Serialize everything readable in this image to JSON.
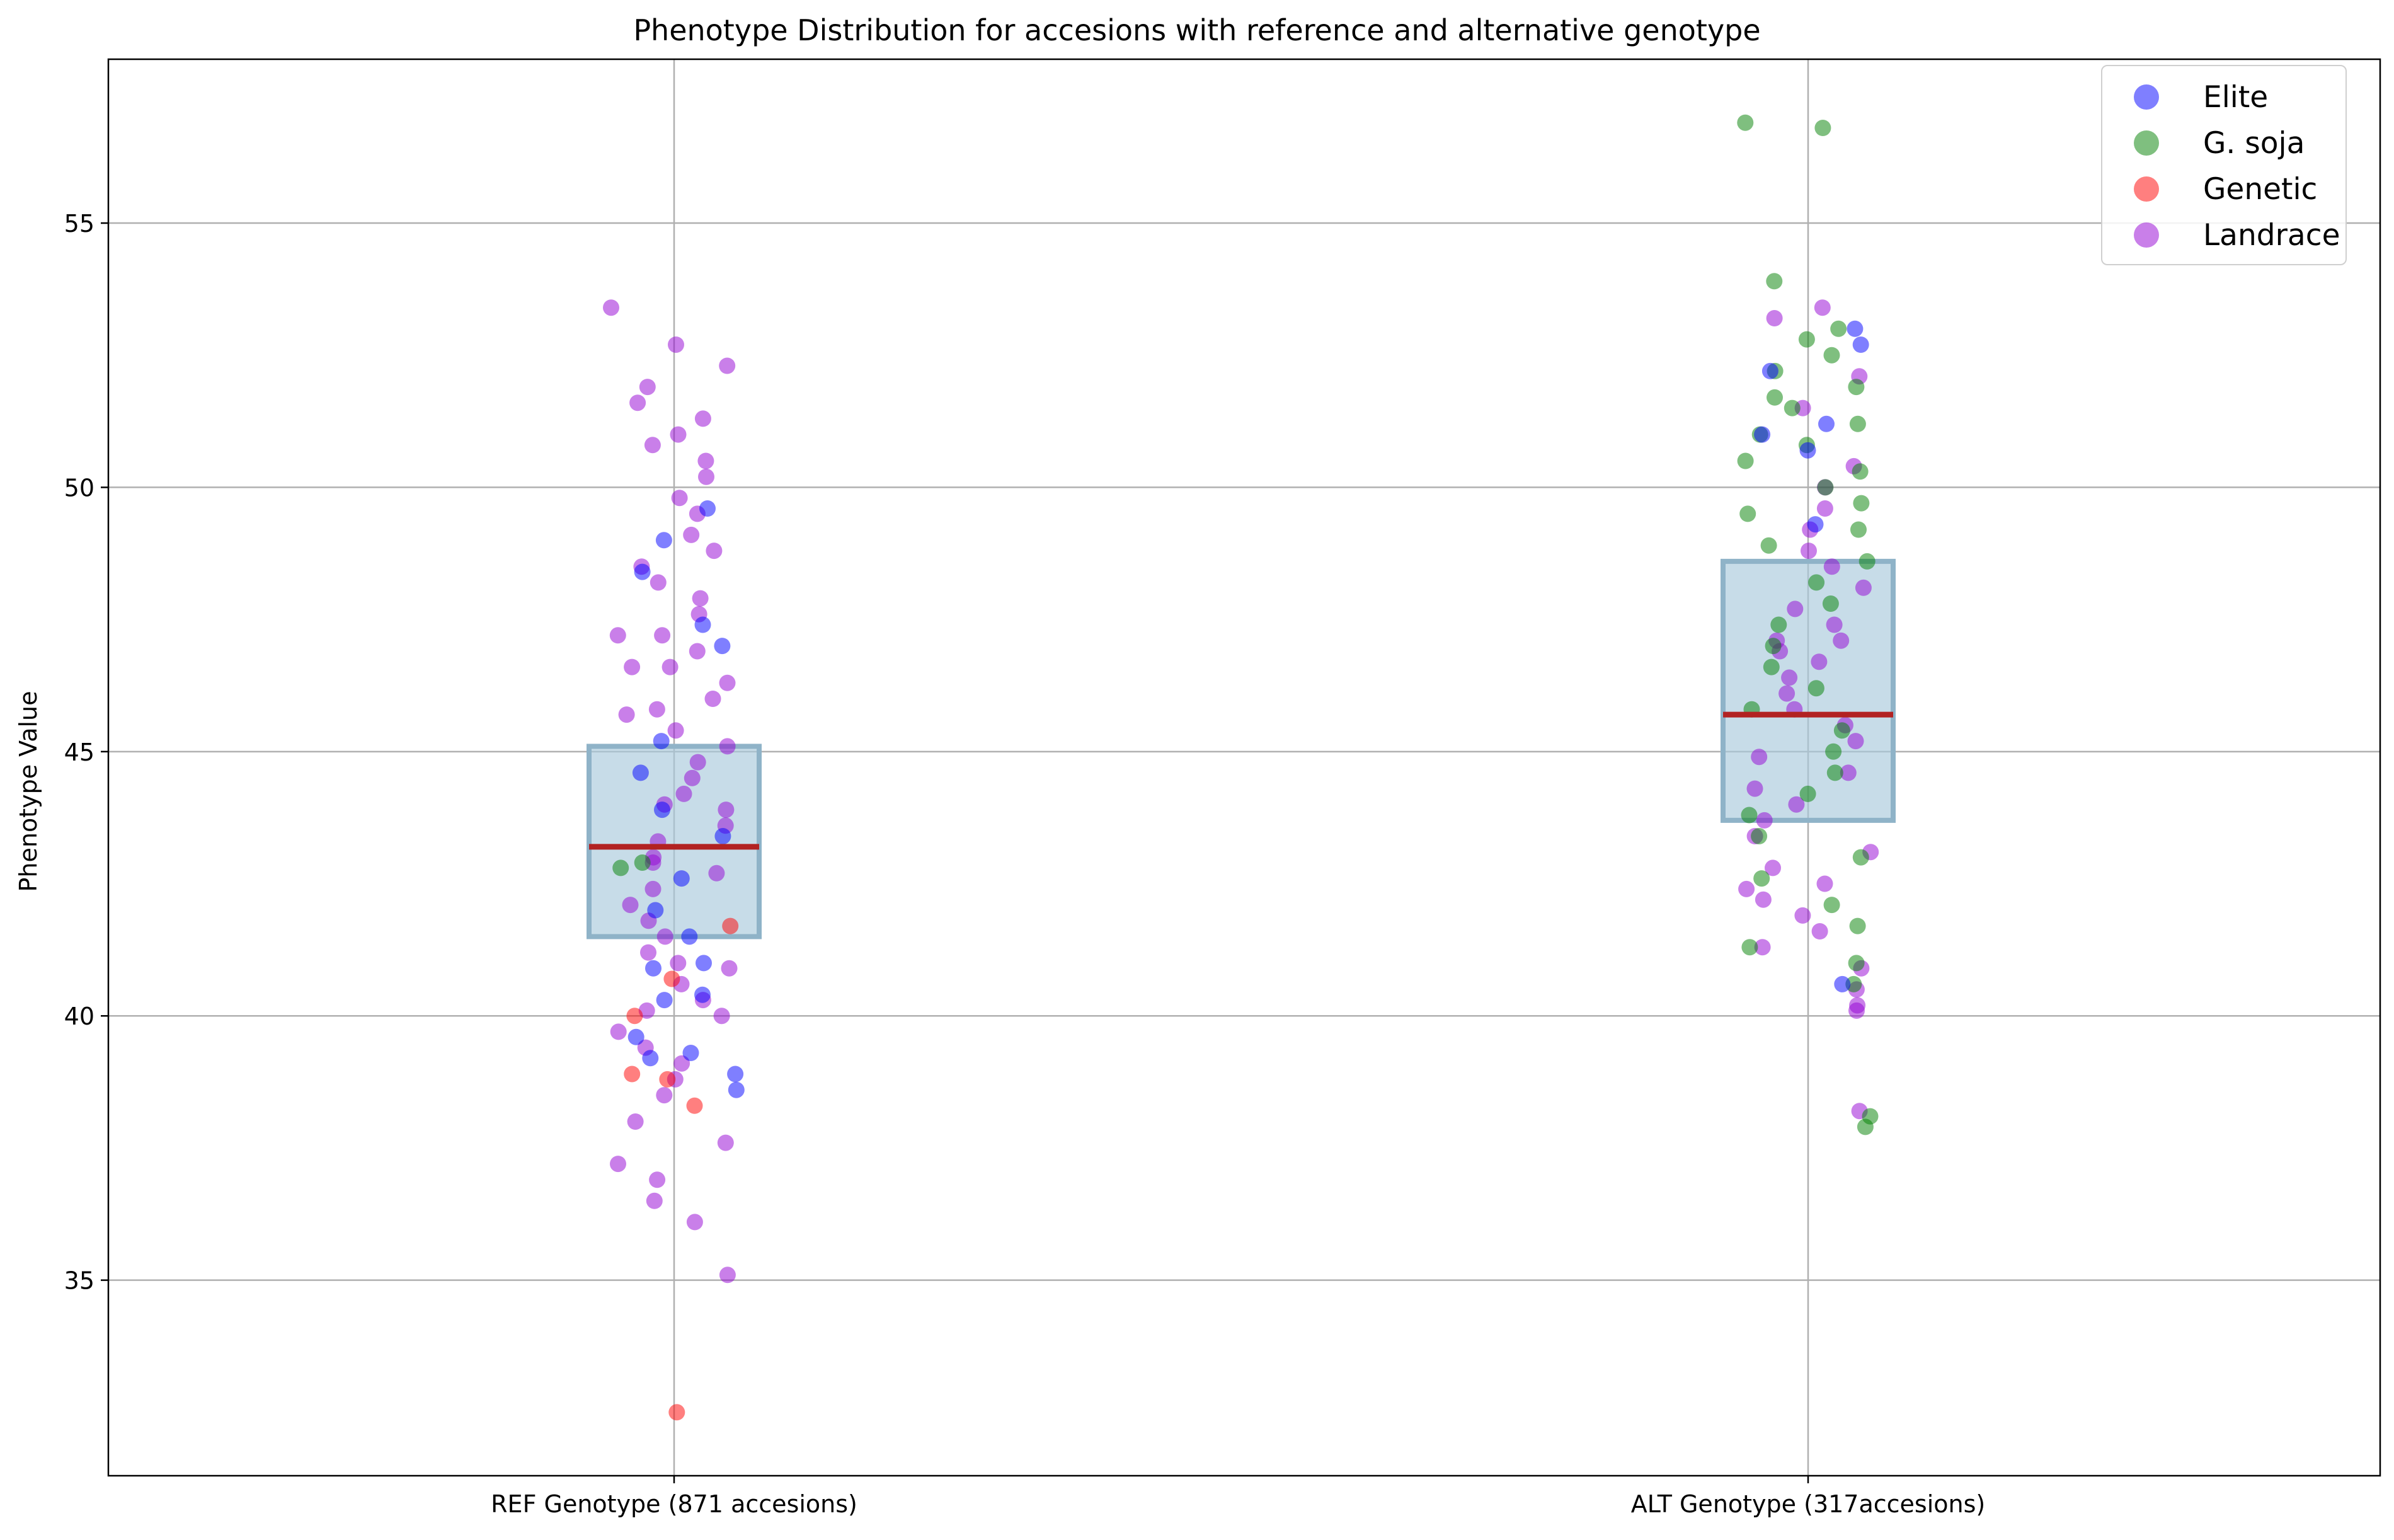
{
  "chart_data": {
    "type": "scatter",
    "title": "Phenotype Distribution for accesions with reference and alternative genotype",
    "ylabel": "Phenotype Value",
    "xlabel": "",
    "ylim": [
      31.3,
      58.1
    ],
    "yticks": [
      35,
      40,
      45,
      50,
      55
    ],
    "grid": true,
    "legend_position": "top-right",
    "categories": [
      "REF Genotype (871 accesions)",
      "ALT Genotype (317accesions)"
    ],
    "legend": [
      {
        "name": "Elite",
        "color": "#0000ff"
      },
      {
        "name": "G. soja",
        "color": "#008000"
      },
      {
        "name": "Genetic",
        "color": "#ff0000"
      },
      {
        "name": "Landrace",
        "color": "#9400d3"
      }
    ],
    "boxes": [
      {
        "category": "REF Genotype (871 accesions)",
        "q1": 41.5,
        "median": 43.2,
        "q3": 45.1
      },
      {
        "category": "ALT Genotype (317accesions)",
        "q1": 43.7,
        "median": 45.7,
        "q3": 48.6
      }
    ],
    "box_fill": "#a9cadb",
    "box_edge": "#8fb3c8",
    "median_color": "#b22222",
    "series": [
      {
        "name": "Landrace",
        "color": "#9400d3",
        "points": [
          [
            0,
            53.4
          ],
          [
            0,
            52.3
          ],
          [
            0,
            51.9
          ],
          [
            0,
            51.6
          ],
          [
            0,
            51.3
          ],
          [
            0,
            51.0
          ],
          [
            0,
            50.8
          ],
          [
            0,
            50.5
          ],
          [
            0,
            50.2
          ],
          [
            0,
            49.8
          ],
          [
            0,
            49.5
          ],
          [
            0,
            49.1
          ],
          [
            0,
            48.8
          ],
          [
            0,
            48.5
          ],
          [
            0,
            48.2
          ],
          [
            0,
            47.9
          ],
          [
            0,
            47.6
          ],
          [
            0,
            47.2
          ],
          [
            0,
            46.9
          ],
          [
            0,
            46.6
          ],
          [
            0,
            46.3
          ],
          [
            0,
            46.0
          ],
          [
            0,
            45.7
          ],
          [
            0,
            45.4
          ],
          [
            0,
            45.1
          ],
          [
            0,
            44.8
          ],
          [
            0,
            44.5
          ],
          [
            0,
            44.2
          ],
          [
            0,
            43.9
          ],
          [
            0,
            43.6
          ],
          [
            0,
            43.3
          ],
          [
            0,
            43.0
          ],
          [
            0,
            42.7
          ],
          [
            0,
            42.4
          ],
          [
            0,
            42.1
          ],
          [
            0,
            41.8
          ],
          [
            0,
            41.5
          ],
          [
            0,
            41.2
          ],
          [
            0,
            40.9
          ],
          [
            0,
            40.6
          ],
          [
            0,
            40.3
          ],
          [
            0,
            40.0
          ],
          [
            0,
            39.7
          ],
          [
            0,
            39.4
          ],
          [
            0,
            39.1
          ],
          [
            0,
            38.8
          ],
          [
            0,
            38.5
          ],
          [
            0,
            38.0
          ],
          [
            0,
            37.6
          ],
          [
            0,
            37.2
          ],
          [
            0,
            36.9
          ],
          [
            0,
            36.5
          ],
          [
            0,
            36.1
          ],
          [
            0,
            35.1
          ],
          [
            0,
            52.7
          ],
          [
            0,
            46.6
          ],
          [
            0,
            47.2
          ],
          [
            0,
            40.1
          ],
          [
            0,
            45.8
          ],
          [
            0,
            44.0
          ],
          [
            0,
            42.9
          ],
          [
            0,
            41.0
          ],
          [
            1,
            53.4
          ],
          [
            1,
            53.2
          ],
          [
            1,
            52.1
          ],
          [
            1,
            51.5
          ],
          [
            1,
            50.4
          ],
          [
            1,
            50.0
          ],
          [
            1,
            49.6
          ],
          [
            1,
            49.2
          ],
          [
            1,
            48.8
          ],
          [
            1,
            48.5
          ],
          [
            1,
            48.1
          ],
          [
            1,
            47.7
          ],
          [
            1,
            47.4
          ],
          [
            1,
            47.1
          ],
          [
            1,
            46.7
          ],
          [
            1,
            46.4
          ],
          [
            1,
            46.1
          ],
          [
            1,
            45.8
          ],
          [
            1,
            45.5
          ],
          [
            1,
            45.2
          ],
          [
            1,
            44.9
          ],
          [
            1,
            44.6
          ],
          [
            1,
            44.3
          ],
          [
            1,
            44.0
          ],
          [
            1,
            43.7
          ],
          [
            1,
            43.4
          ],
          [
            1,
            43.1
          ],
          [
            1,
            42.8
          ],
          [
            1,
            42.5
          ],
          [
            1,
            42.2
          ],
          [
            1,
            41.9
          ],
          [
            1,
            41.6
          ],
          [
            1,
            41.3
          ],
          [
            1,
            40.9
          ],
          [
            1,
            40.5
          ],
          [
            1,
            40.2
          ],
          [
            1,
            40.1
          ],
          [
            1,
            38.2
          ],
          [
            1,
            47.1
          ],
          [
            1,
            46.9
          ],
          [
            1,
            42.4
          ]
        ]
      },
      {
        "name": "G. soja",
        "color": "#008000",
        "points": [
          [
            0,
            42.9
          ],
          [
            0,
            42.8
          ],
          [
            1,
            56.9
          ],
          [
            1,
            56.8
          ],
          [
            1,
            53.9
          ],
          [
            1,
            53.0
          ],
          [
            1,
            52.8
          ],
          [
            1,
            52.5
          ],
          [
            1,
            52.2
          ],
          [
            1,
            51.9
          ],
          [
            1,
            51.7
          ],
          [
            1,
            51.5
          ],
          [
            1,
            51.2
          ],
          [
            1,
            51.0
          ],
          [
            1,
            50.8
          ],
          [
            1,
            50.5
          ],
          [
            1,
            50.3
          ],
          [
            1,
            50.0
          ],
          [
            1,
            49.7
          ],
          [
            1,
            49.5
          ],
          [
            1,
            49.2
          ],
          [
            1,
            48.9
          ],
          [
            1,
            48.6
          ],
          [
            1,
            48.2
          ],
          [
            1,
            47.8
          ],
          [
            1,
            47.4
          ],
          [
            1,
            47.0
          ],
          [
            1,
            46.6
          ],
          [
            1,
            46.2
          ],
          [
            1,
            45.8
          ],
          [
            1,
            45.4
          ],
          [
            1,
            45.0
          ],
          [
            1,
            44.6
          ],
          [
            1,
            44.2
          ],
          [
            1,
            43.8
          ],
          [
            1,
            43.4
          ],
          [
            1,
            43.0
          ],
          [
            1,
            42.6
          ],
          [
            1,
            42.1
          ],
          [
            1,
            41.7
          ],
          [
            1,
            41.3
          ],
          [
            1,
            41.0
          ],
          [
            1,
            40.6
          ],
          [
            1,
            38.1
          ],
          [
            1,
            37.9
          ]
        ]
      },
      {
        "name": "Elite",
        "color": "#0000ff",
        "points": [
          [
            0,
            49.6
          ],
          [
            0,
            49.0
          ],
          [
            0,
            48.4
          ],
          [
            0,
            47.4
          ],
          [
            0,
            47.0
          ],
          [
            0,
            45.2
          ],
          [
            0,
            44.6
          ],
          [
            0,
            43.9
          ],
          [
            0,
            43.4
          ],
          [
            0,
            42.6
          ],
          [
            0,
            42.0
          ],
          [
            0,
            41.5
          ],
          [
            0,
            41.0
          ],
          [
            0,
            40.9
          ],
          [
            0,
            40.4
          ],
          [
            0,
            40.3
          ],
          [
            0,
            39.6
          ],
          [
            0,
            39.2
          ],
          [
            0,
            38.9
          ],
          [
            0,
            38.6
          ],
          [
            0,
            39.3
          ],
          [
            1,
            53.0
          ],
          [
            1,
            52.7
          ],
          [
            1,
            52.2
          ],
          [
            1,
            51.2
          ],
          [
            1,
            51.0
          ],
          [
            1,
            50.7
          ],
          [
            1,
            49.3
          ],
          [
            1,
            40.6
          ]
        ]
      },
      {
        "name": "Genetic",
        "color": "#ff0000",
        "points": [
          [
            0,
            41.7
          ],
          [
            0,
            40.7
          ],
          [
            0,
            40.0
          ],
          [
            0,
            38.8
          ],
          [
            0,
            38.9
          ],
          [
            0,
            38.3
          ],
          [
            0,
            32.5
          ]
        ]
      }
    ]
  }
}
